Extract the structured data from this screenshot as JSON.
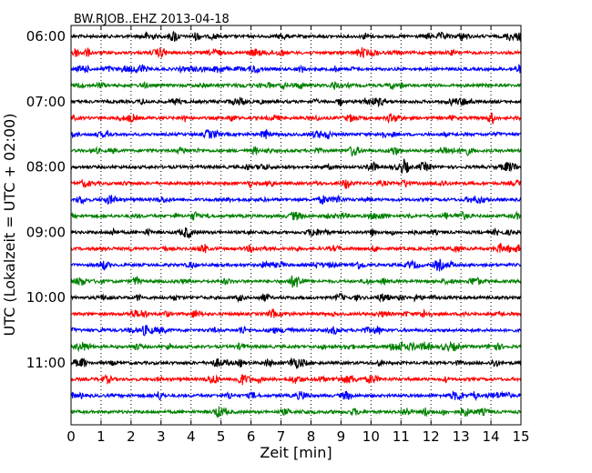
{
  "chart_data": {
    "type": "line",
    "title": "BW.RJOB..EHZ 2013-04-18",
    "xlabel": "Zeit  [min]",
    "ylabel": "UTC (Lokalzeit = UTC + 02:00)",
    "xlim": [
      0,
      15
    ],
    "x_ticks": [
      "0",
      "1",
      "2",
      "3",
      "4",
      "5",
      "6",
      "7",
      "8",
      "9",
      "10",
      "11",
      "12",
      "13",
      "14",
      "15"
    ],
    "y_ticks": [
      "06:00",
      "07:00",
      "08:00",
      "09:00",
      "10:00",
      "11:00"
    ],
    "grid": "vertical dotted at each minute",
    "trace_colors": [
      "#000000",
      "#ff0000",
      "#0000ff",
      "#008000"
    ],
    "n_traces": 24
  }
}
